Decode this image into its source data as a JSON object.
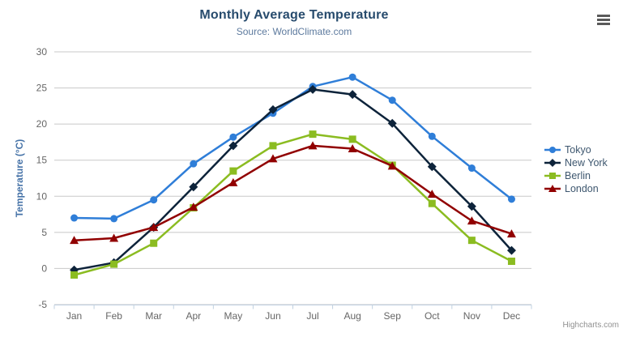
{
  "header": {
    "title": "Monthly Average Temperature",
    "subtitle": "Source: WorldClimate.com"
  },
  "credit": {
    "label": "Highcharts.com"
  },
  "context_menu": {
    "icon": "hamburger-icon"
  },
  "chart_data": {
    "type": "line",
    "title": "Monthly Average Temperature",
    "subtitle": "Source: WorldClimate.com",
    "xlabel": "",
    "ylabel": "Temperature (°C)",
    "categories": [
      "Jan",
      "Feb",
      "Mar",
      "Apr",
      "May",
      "Jun",
      "Jul",
      "Aug",
      "Sep",
      "Oct",
      "Nov",
      "Dec"
    ],
    "series": [
      {
        "name": "Tokyo",
        "color": "#2f7ed8",
        "marker": "circle",
        "values": [
          7.0,
          6.9,
          9.5,
          14.5,
          18.2,
          21.5,
          25.2,
          26.5,
          23.3,
          18.3,
          13.9,
          9.6
        ]
      },
      {
        "name": "New York",
        "color": "#0d233a",
        "marker": "diamond",
        "values": [
          -0.2,
          0.8,
          5.7,
          11.3,
          17.0,
          22.0,
          24.8,
          24.1,
          20.1,
          14.1,
          8.6,
          2.5
        ]
      },
      {
        "name": "Berlin",
        "color": "#8bbc21",
        "marker": "square",
        "values": [
          -0.9,
          0.6,
          3.5,
          8.4,
          13.5,
          17.0,
          18.6,
          17.9,
          14.3,
          9.0,
          3.9,
          1.0
        ]
      },
      {
        "name": "London",
        "color": "#910000",
        "marker": "triangle",
        "values": [
          3.9,
          4.2,
          5.7,
          8.5,
          11.9,
          15.2,
          17.0,
          16.6,
          14.2,
          10.3,
          6.6,
          4.8
        ]
      }
    ],
    "ylim": [
      -5,
      30
    ],
    "ytick_interval": 5,
    "yticks": [
      -5,
      0,
      5,
      10,
      15,
      20,
      25,
      30
    ],
    "grid": true,
    "legend_position": "right"
  },
  "colors": {
    "title": "#274b6d",
    "subtitle": "#5d7a9e",
    "yaxis_title": "#4572a7",
    "tick_label": "#666666",
    "grid_line": "#c8c8c8",
    "axis_line": "#c0d0e0",
    "legend_text": "#3e576f",
    "credit_text": "#909090",
    "menu_icon": "#5a5a5a"
  }
}
